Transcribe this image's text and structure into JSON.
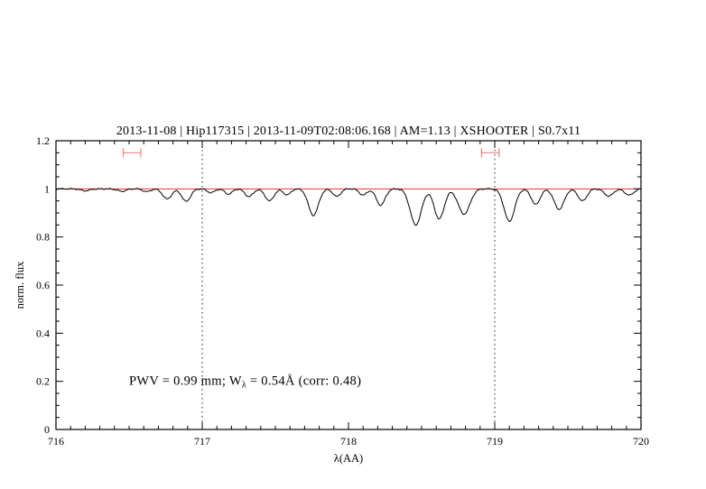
{
  "title": {
    "text": "2013-11-08 | Hip117315 | 2013-11-09T02:08:06.168 | AM=1.13 | XSHOOTER | S0.7x11",
    "color": "#0000cd"
  },
  "annotation": {
    "pre": "PWV = 0.99 mm; W",
    "sub": "λ",
    "post": " = 0.54Å (corr: 0.48)",
    "color": "#0000cd"
  },
  "chart_data": {
    "type": "line",
    "title": "2013-11-08 | Hip117315 | 2013-11-09T02:08:06.168 | AM=1.13 | XSHOOTER | S0.7x11",
    "xlabel": "λ(AA)",
    "ylabel": "norm. flux",
    "xlim": [
      716,
      720
    ],
    "ylim": [
      0,
      1.2
    ],
    "x_ticks": [
      716,
      717,
      718,
      719,
      720
    ],
    "x_tick_labels": [
      "716",
      "717",
      "718",
      "719",
      "720"
    ],
    "y_ticks": [
      0,
      0.2,
      0.4,
      0.6,
      0.8,
      1.0,
      1.2
    ],
    "y_tick_labels": [
      "0",
      "0.2",
      "0.4",
      "0.6",
      "0.8",
      "1",
      "1.2"
    ],
    "grid": "dotted vertical lines only",
    "legend": "none",
    "dotted_vlines": [
      717,
      719
    ],
    "continuum_level": 1.0,
    "colors": {
      "spectrum": "#000000",
      "continuum": "#ee3333",
      "markers": "#f08080",
      "frame": "#000000",
      "vline": "#222222"
    },
    "range_markers": [
      {
        "center": 716.52,
        "half_width": 0.06,
        "y": 1.15
      },
      {
        "center": 718.97,
        "half_width": 0.06,
        "y": 1.15
      }
    ],
    "absorption_lines_format": "[center_AA, depth_normflux, sigma_AA]",
    "absorption_lines": [
      [
        716.2,
        0.008,
        0.03
      ],
      [
        716.45,
        0.01,
        0.03
      ],
      [
        716.62,
        0.012,
        0.025
      ],
      [
        716.76,
        0.042,
        0.03
      ],
      [
        716.89,
        0.052,
        0.03
      ],
      [
        717.06,
        0.016,
        0.025
      ],
      [
        717.18,
        0.022,
        0.025
      ],
      [
        717.32,
        0.032,
        0.028
      ],
      [
        717.46,
        0.05,
        0.03
      ],
      [
        717.58,
        0.025,
        0.025
      ],
      [
        717.76,
        0.11,
        0.034
      ],
      [
        717.92,
        0.032,
        0.026
      ],
      [
        718.1,
        0.026,
        0.026
      ],
      [
        718.22,
        0.068,
        0.03
      ],
      [
        718.46,
        0.15,
        0.038
      ],
      [
        718.62,
        0.125,
        0.034
      ],
      [
        718.79,
        0.105,
        0.04
      ],
      [
        719.1,
        0.135,
        0.036
      ],
      [
        719.28,
        0.065,
        0.03
      ],
      [
        719.44,
        0.085,
        0.034
      ],
      [
        719.6,
        0.05,
        0.03
      ],
      [
        719.78,
        0.03,
        0.03
      ],
      [
        719.92,
        0.026,
        0.03
      ]
    ]
  }
}
